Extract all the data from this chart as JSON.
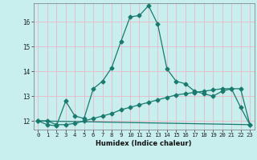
{
  "xlabel": "Humidex (Indice chaleur)",
  "bg_color": "#c8eeee",
  "grid_color": "#e8b8c8",
  "line_color": "#1a7a6e",
  "xlim": [
    -0.5,
    23.5
  ],
  "ylim": [
    11.65,
    16.75
  ],
  "xticks": [
    0,
    1,
    2,
    3,
    4,
    5,
    6,
    7,
    8,
    9,
    10,
    11,
    12,
    13,
    14,
    15,
    16,
    17,
    18,
    19,
    20,
    21,
    22,
    23
  ],
  "yticks": [
    12,
    13,
    14,
    15,
    16
  ],
  "line1_x": [
    0,
    1,
    2,
    3,
    4,
    5,
    6,
    7,
    8,
    9,
    10,
    11,
    12,
    13,
    14,
    15,
    16,
    17,
    18,
    19,
    20,
    21,
    22,
    23
  ],
  "line1_y": [
    12.0,
    11.85,
    11.8,
    12.8,
    12.2,
    12.1,
    13.3,
    13.6,
    14.15,
    15.2,
    16.2,
    16.25,
    16.65,
    15.9,
    14.1,
    13.6,
    13.5,
    13.2,
    13.1,
    13.0,
    13.2,
    13.3,
    12.55,
    11.85
  ],
  "line2_x": [
    0,
    1,
    2,
    3,
    4,
    5,
    6,
    7,
    8,
    9,
    10,
    11,
    12,
    13,
    14,
    15,
    16,
    17,
    18,
    19,
    20,
    21,
    22,
    23
  ],
  "line2_y": [
    12.0,
    12.0,
    11.85,
    11.85,
    11.9,
    12.0,
    12.1,
    12.2,
    12.3,
    12.45,
    12.55,
    12.65,
    12.75,
    12.85,
    12.95,
    13.05,
    13.1,
    13.15,
    13.2,
    13.25,
    13.3,
    13.3,
    13.3,
    11.85
  ],
  "line3_x": [
    0,
    23
  ],
  "line3_y": [
    12.0,
    11.85
  ],
  "markersize": 2.5,
  "linewidth": 0.9,
  "xlabel_fontsize": 6.0,
  "tick_fontsize": 5.2
}
